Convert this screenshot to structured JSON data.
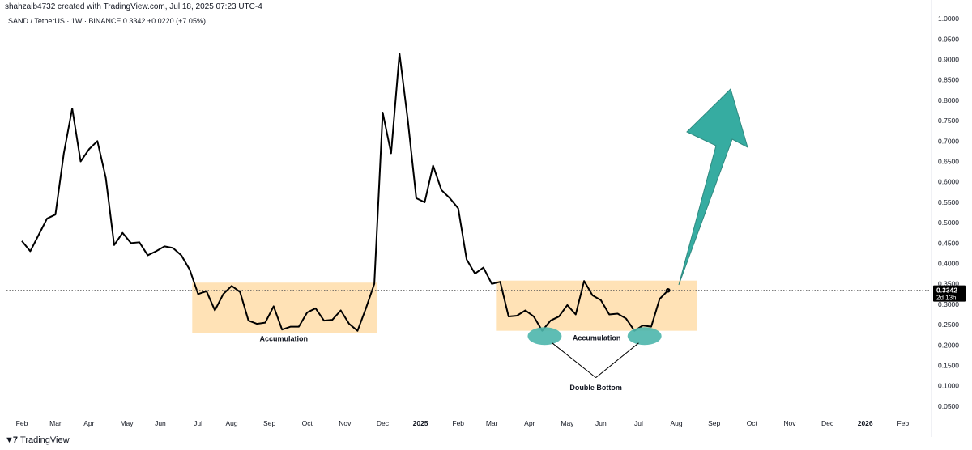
{
  "header": {
    "created_by": "shahzaib4732 created with TradingView.com, Jul 18, 2025 07:23 UTC-4",
    "symbol_info": "SAND / TetherUS · 1W · BINANCE  0.3342  +0.0220 (+7.05%)"
  },
  "footer": {
    "brand": "TradingView",
    "brand_icon": "tradingview-logo-icon"
  },
  "colors": {
    "line": "#000000",
    "accumulation_box": "#FFE0B2",
    "arrow": "#26A69A",
    "ellipse": "#4DB6AC",
    "price_label_bg": "#000000"
  },
  "chart_data": {
    "type": "line",
    "title": "SAND / TetherUS · 1W · BINANCE",
    "xlabel": "",
    "ylabel": "",
    "ylim": [
      0.03,
      1.03
    ],
    "y_ticks": [
      "1.0000",
      "0.9500",
      "0.9000",
      "0.8500",
      "0.8000",
      "0.7500",
      "0.7000",
      "0.6500",
      "0.6000",
      "0.5500",
      "0.5000",
      "0.4500",
      "0.4000",
      "0.3500",
      "0.3000",
      "0.2500",
      "0.2000",
      "0.1500",
      "0.1000",
      "0.0500"
    ],
    "x_ticks": [
      {
        "label": "Feb",
        "week": 0
      },
      {
        "label": "Mar",
        "week": 4
      },
      {
        "label": "Apr",
        "week": 8
      },
      {
        "label": "May",
        "week": 12.5
      },
      {
        "label": "Jun",
        "week": 16.5
      },
      {
        "label": "Jul",
        "week": 21
      },
      {
        "label": "Aug",
        "week": 25
      },
      {
        "label": "Sep",
        "week": 29.5
      },
      {
        "label": "Oct",
        "week": 34
      },
      {
        "label": "Nov",
        "week": 38.5
      },
      {
        "label": "Dec",
        "week": 43
      },
      {
        "label": "2025",
        "week": 47.5
      },
      {
        "label": "Feb",
        "week": 52
      },
      {
        "label": "Mar",
        "week": 56
      },
      {
        "label": "Apr",
        "week": 60.5
      },
      {
        "label": "May",
        "week": 65
      },
      {
        "label": "Jun",
        "week": 69
      },
      {
        "label": "Jul",
        "week": 73.5
      },
      {
        "label": "Aug",
        "week": 78
      },
      {
        "label": "Sep",
        "week": 82.5
      },
      {
        "label": "Oct",
        "week": 87
      },
      {
        "label": "Nov",
        "week": 91.5
      },
      {
        "label": "Dec",
        "week": 96
      },
      {
        "label": "2026",
        "week": 100.5
      },
      {
        "label": "Feb",
        "week": 105
      }
    ],
    "series": [
      {
        "values": [
          0.455,
          0.43,
          0.47,
          0.51,
          0.52,
          0.67,
          0.78,
          0.65,
          0.68,
          0.7,
          0.61,
          0.445,
          0.475,
          0.45,
          0.452,
          0.42,
          0.43,
          0.442,
          0.438,
          0.42,
          0.385,
          0.325,
          0.332,
          0.285,
          0.325,
          0.345,
          0.33,
          0.26,
          0.252,
          0.255,
          0.295,
          0.238,
          0.245,
          0.245,
          0.28,
          0.29,
          0.26,
          0.262,
          0.285,
          0.252,
          0.235,
          0.29,
          0.35,
          0.77,
          0.67,
          0.915,
          0.75,
          0.56,
          0.55,
          0.64,
          0.58,
          0.56,
          0.535,
          0.41,
          0.375,
          0.39,
          0.35,
          0.355,
          0.27,
          0.272,
          0.285,
          0.27,
          0.235,
          0.26,
          0.27,
          0.298,
          0.275,
          0.357,
          0.322,
          0.31,
          0.275,
          0.277,
          0.265,
          0.235,
          0.248,
          0.245,
          0.313,
          0.334
        ]
      }
    ],
    "last_price": "0.3342",
    "last_price_countdown": "2d 13h",
    "annotations": {
      "accumulation_1": "Accumulation",
      "accumulation_2": "Accumulation",
      "double_bottom": "Double Bottom"
    },
    "zones": [
      {
        "name": "accumulation-1",
        "x_from": 20.3,
        "x_to": 42.3,
        "y_from": 0.23,
        "y_to": 0.353
      },
      {
        "name": "accumulation-2",
        "x_from": 56.5,
        "x_to": 80.5,
        "y_from": 0.235,
        "y_to": 0.358
      }
    ],
    "grid": false,
    "legend": "none"
  }
}
